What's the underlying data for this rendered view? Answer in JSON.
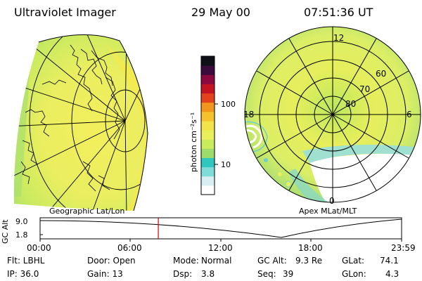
{
  "header": {
    "instrument": "Ultraviolet Imager",
    "date": "29 May 00",
    "time": "07:51:36 UT"
  },
  "colorbar": {
    "unit_label": "photon cm⁻²s⁻¹",
    "tick_high": "100",
    "tick_low": "10",
    "colors": [
      "#ffffff",
      "#d8eef2",
      "#7fdcd8",
      "#2fc6c0",
      "#9ddc6a",
      "#c8ec5c",
      "#e9f05c",
      "#f2e34a",
      "#f5c12c",
      "#f2951c",
      "#e4421c",
      "#c41424",
      "#8a0a40",
      "#3c0a3c",
      "#101018"
    ]
  },
  "panels": {
    "left_label": "Geographic Lat/Lon",
    "right_label": "Apex MLat/MLT",
    "polar": {
      "lat_labels": [
        "60",
        "70",
        "80"
      ],
      "mlt_labels": {
        "top": "12",
        "left": "18",
        "right": "6",
        "bottom": "0"
      }
    }
  },
  "timeline": {
    "axis_label": "GC Alt",
    "y_ticks": [
      "9.0",
      "1.8"
    ],
    "x_ticks": [
      "00:00",
      "06:00",
      "12:00",
      "18:00",
      "23:59"
    ],
    "marker_time_fraction": 0.327
  },
  "info": {
    "flt": "Flt: LBHL",
    "ip": "IP: 36.0",
    "door": "Door: Open",
    "gain": "Gain: 13",
    "mode_label": "Mode:",
    "mode_value": "Normal",
    "dsp_label": "Dsp:",
    "dsp_value": "3.8",
    "gcalt_label": "GC Alt:",
    "gcalt_value": "9.3 Re",
    "seq_label": "Seq:",
    "seq_value": "39",
    "glat_label": "GLat:",
    "glat_value": "74.1",
    "glon_label": "GLon:",
    "glon_value": "4.3"
  }
}
